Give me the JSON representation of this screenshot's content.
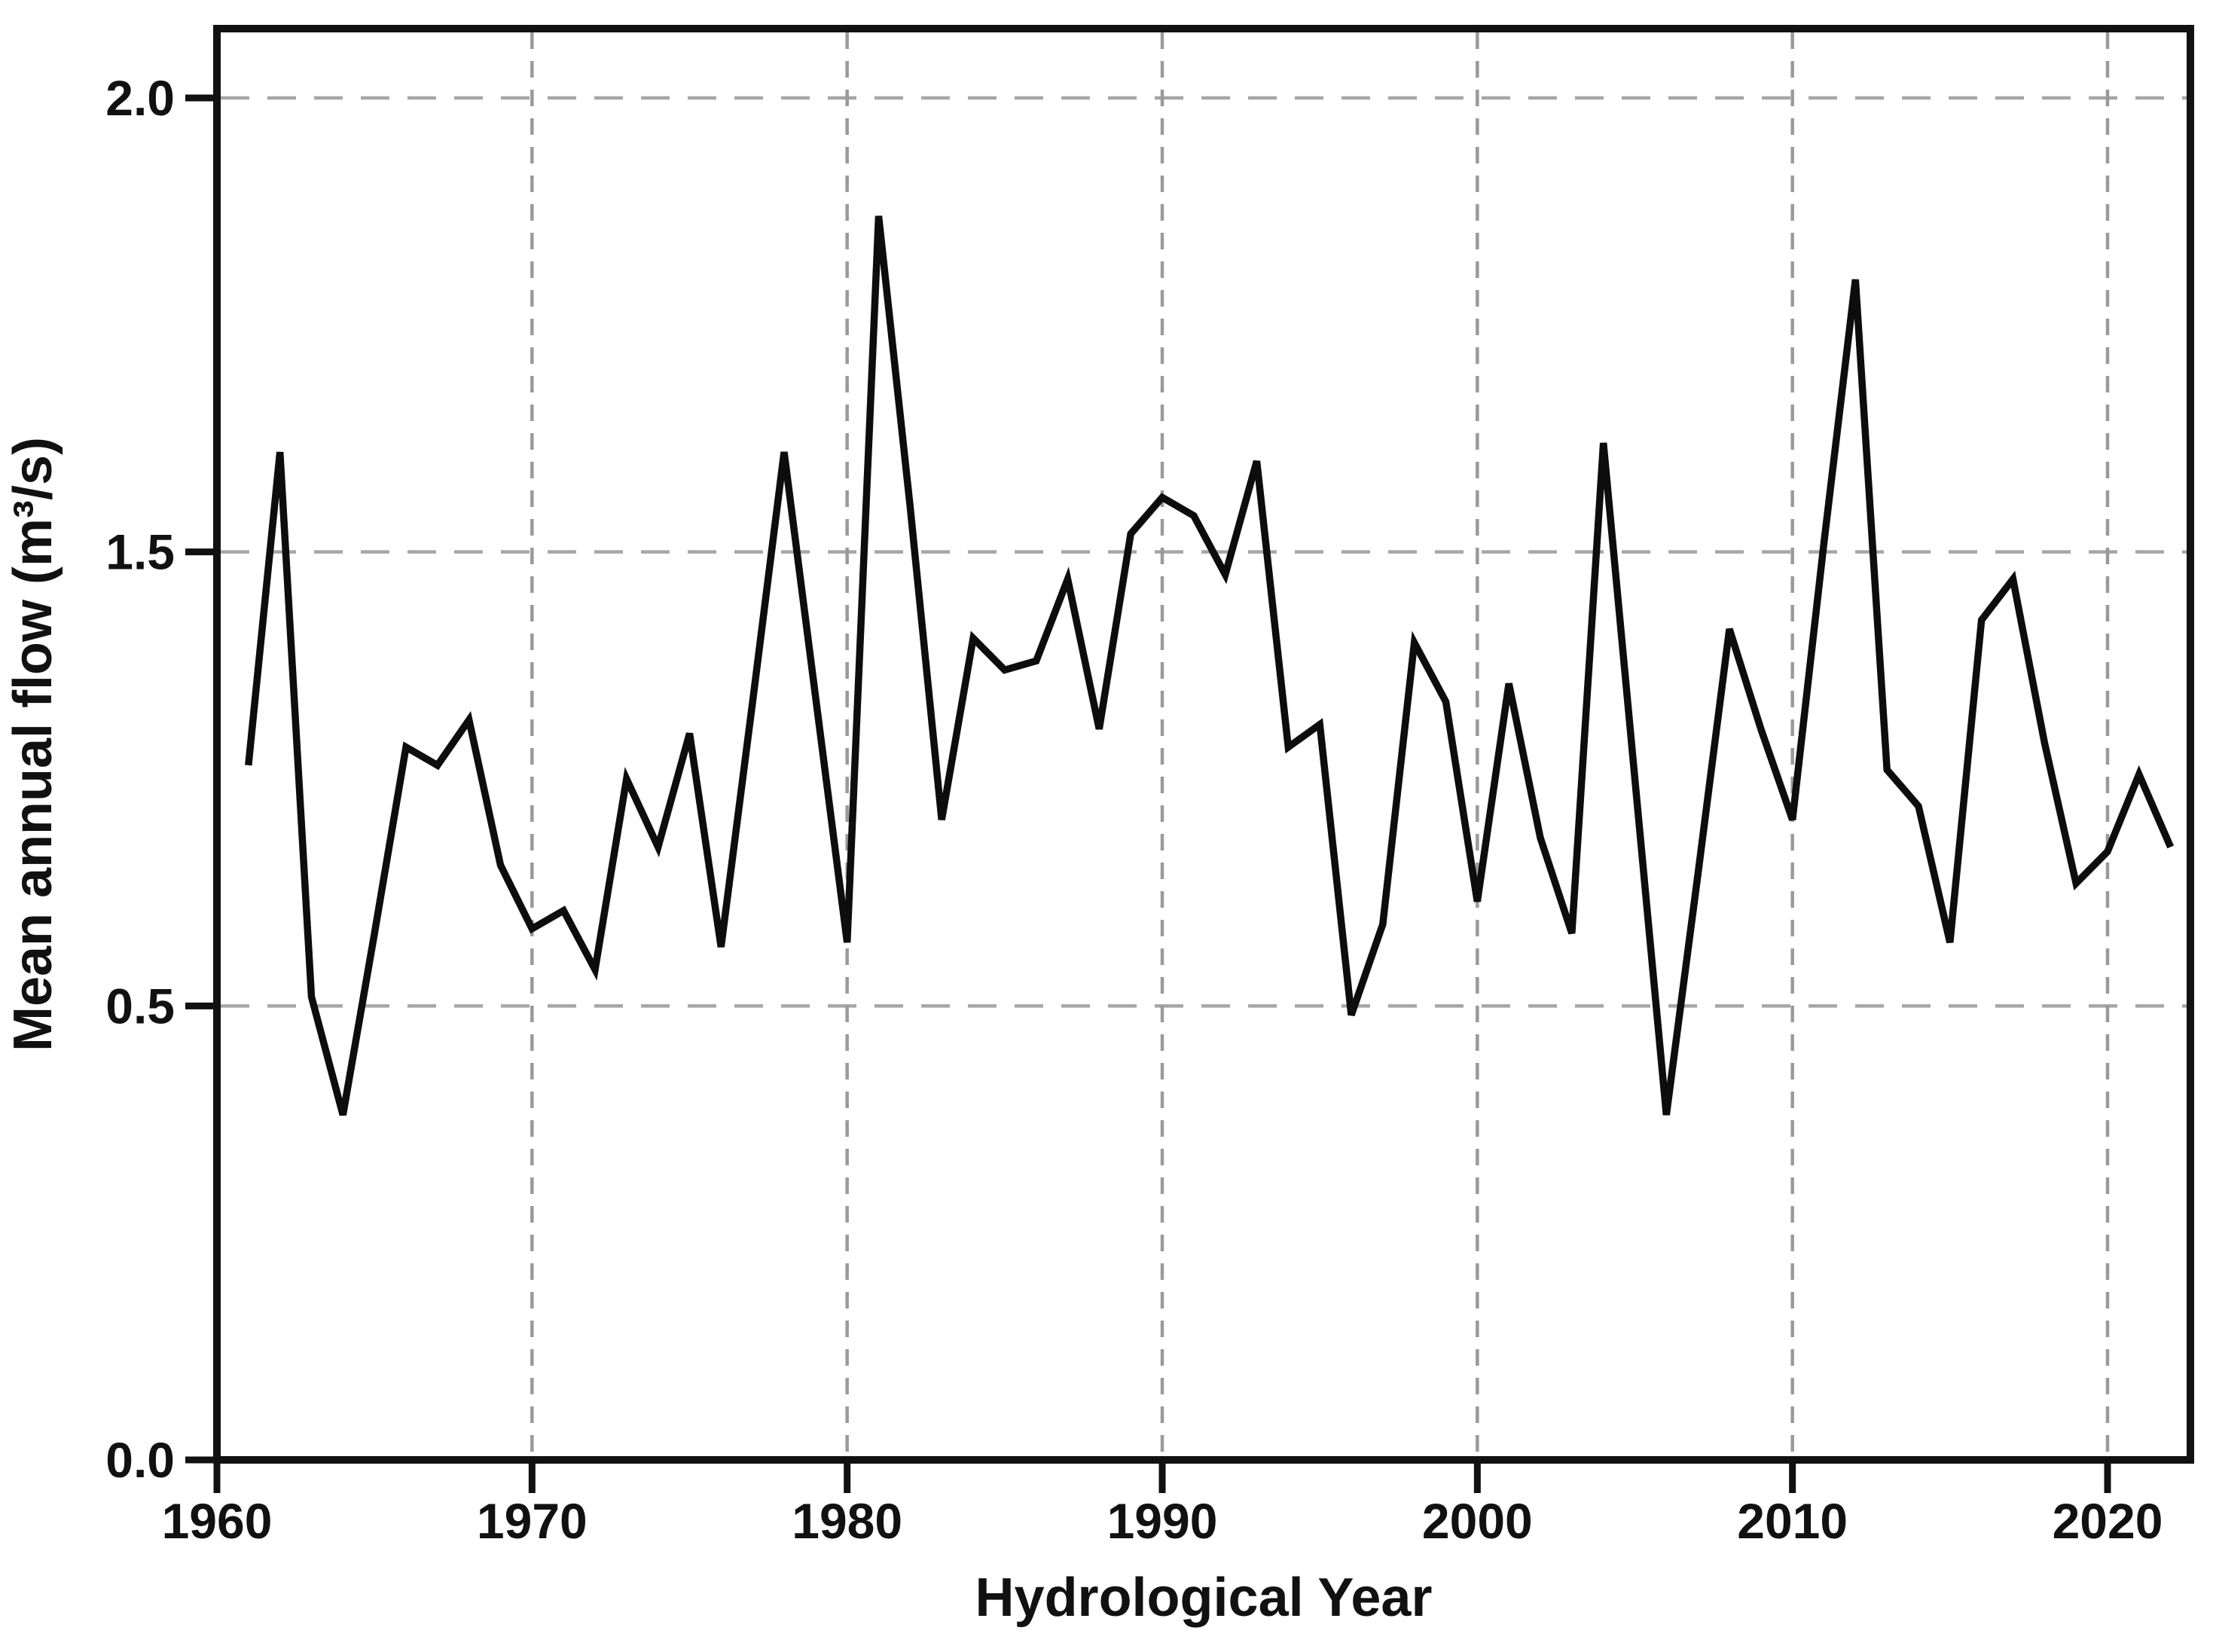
{
  "figure": {
    "background_color": "#ffffff",
    "type_label": "line chart"
  },
  "colors": {
    "line": "#0d0d0d",
    "axis": "#111111",
    "grid_horizontal": "#a6a6a6",
    "grid_vertical": "#9a9a9a",
    "text": "#111111",
    "background": "#ffffff"
  },
  "chart_data": {
    "type": "line",
    "title": "",
    "xlabel": "Hydrological Year",
    "ylabel": "Mean annual flow (m³/s)",
    "legend": "none",
    "grid": "dashed, on (horizontal at labeled y-ticks, vertical at decade x-ticks)",
    "y_ticks": [
      "2.0",
      "1.5",
      "0.5",
      "0.0"
    ],
    "y_axis_note": "four evenly spaced ticks labeled 2.0, 1.5, 0.5, 0.0 (no 1.0 label); values mapped piecewise between tick labels",
    "x_ticks": [
      "1960",
      "1970",
      "1980",
      "1990",
      "2000",
      "2010",
      "2020"
    ],
    "xlim": [
      1960,
      2022.6
    ],
    "x": [
      1961,
      1962,
      1963,
      1964,
      1965,
      1966,
      1967,
      1968,
      1969,
      1970,
      1971,
      1972,
      1973,
      1974,
      1975,
      1976,
      1977,
      1978,
      1979,
      1980,
      1981,
      1982,
      1983,
      1984,
      1985,
      1986,
      1987,
      1988,
      1989,
      1990,
      1991,
      1992,
      1993,
      1994,
      1995,
      1996,
      1997,
      1998,
      1999,
      2000,
      2001,
      2002,
      2003,
      2004,
      2005,
      2006,
      2007,
      2008,
      2009,
      2010,
      2011,
      2012,
      2013,
      2014,
      2015,
      2016,
      2017,
      2018,
      2019,
      2020,
      2021,
      2022
    ],
    "values": [
      1.03,
      1.61,
      0.52,
      0.38,
      0.66,
      1.07,
      1.03,
      1.13,
      0.81,
      0.67,
      0.71,
      0.58,
      1.0,
      0.85,
      1.1,
      0.63,
      1.17,
      1.61,
      1.18,
      0.64,
      1.87,
      1.55,
      0.91,
      1.31,
      1.24,
      1.26,
      1.44,
      1.11,
      1.52,
      1.56,
      1.54,
      1.45,
      1.6,
      1.07,
      1.12,
      0.49,
      0.68,
      1.3,
      1.17,
      0.73,
      1.21,
      0.87,
      0.66,
      1.62,
      1.0,
      0.38,
      0.79,
      1.33,
      1.11,
      0.91,
      1.51,
      1.8,
      1.02,
      0.94,
      0.64,
      1.35,
      1.44,
      1.08,
      0.77,
      0.84,
      1.01,
      0.85
    ]
  }
}
